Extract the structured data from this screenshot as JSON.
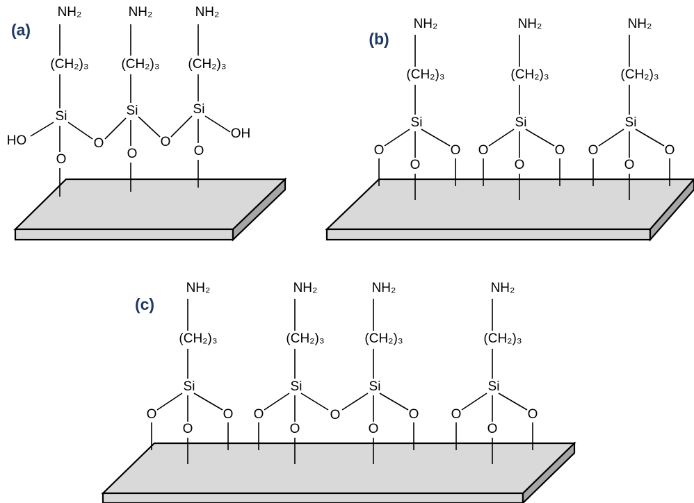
{
  "panels": [
    {
      "label": "(a)",
      "atoms": [
        "NH₂",
        "(CH₂)₃",
        "Si",
        "HO",
        "O",
        "O",
        "NH₂",
        "(CH₂)₃",
        "Si",
        "O",
        "O",
        "NH₂",
        "(CH₂)₃",
        "Si",
        "O",
        "OH"
      ]
    },
    {
      "label": "(b)",
      "atoms": [
        "NH₂",
        "(CH₂)₃",
        "Si",
        "O",
        "O",
        "O",
        "NH₂",
        "(CH₂)₃",
        "Si",
        "O",
        "O",
        "O",
        "NH₂",
        "(CH₂)₃",
        "Si",
        "O",
        "O",
        "O"
      ]
    },
    {
      "label": "(c)",
      "atoms": [
        "NH₂",
        "(CH₂)₃",
        "Si",
        "O",
        "O",
        "O",
        "NH₂",
        "(CH₂)₃",
        "Si",
        "O",
        "O",
        "O",
        "NH₂",
        "(CH₂)₃",
        "Si",
        "O",
        "O",
        "NH₂",
        "(CH₂)₃",
        "Si",
        "O",
        "O",
        "O"
      ]
    }
  ]
}
